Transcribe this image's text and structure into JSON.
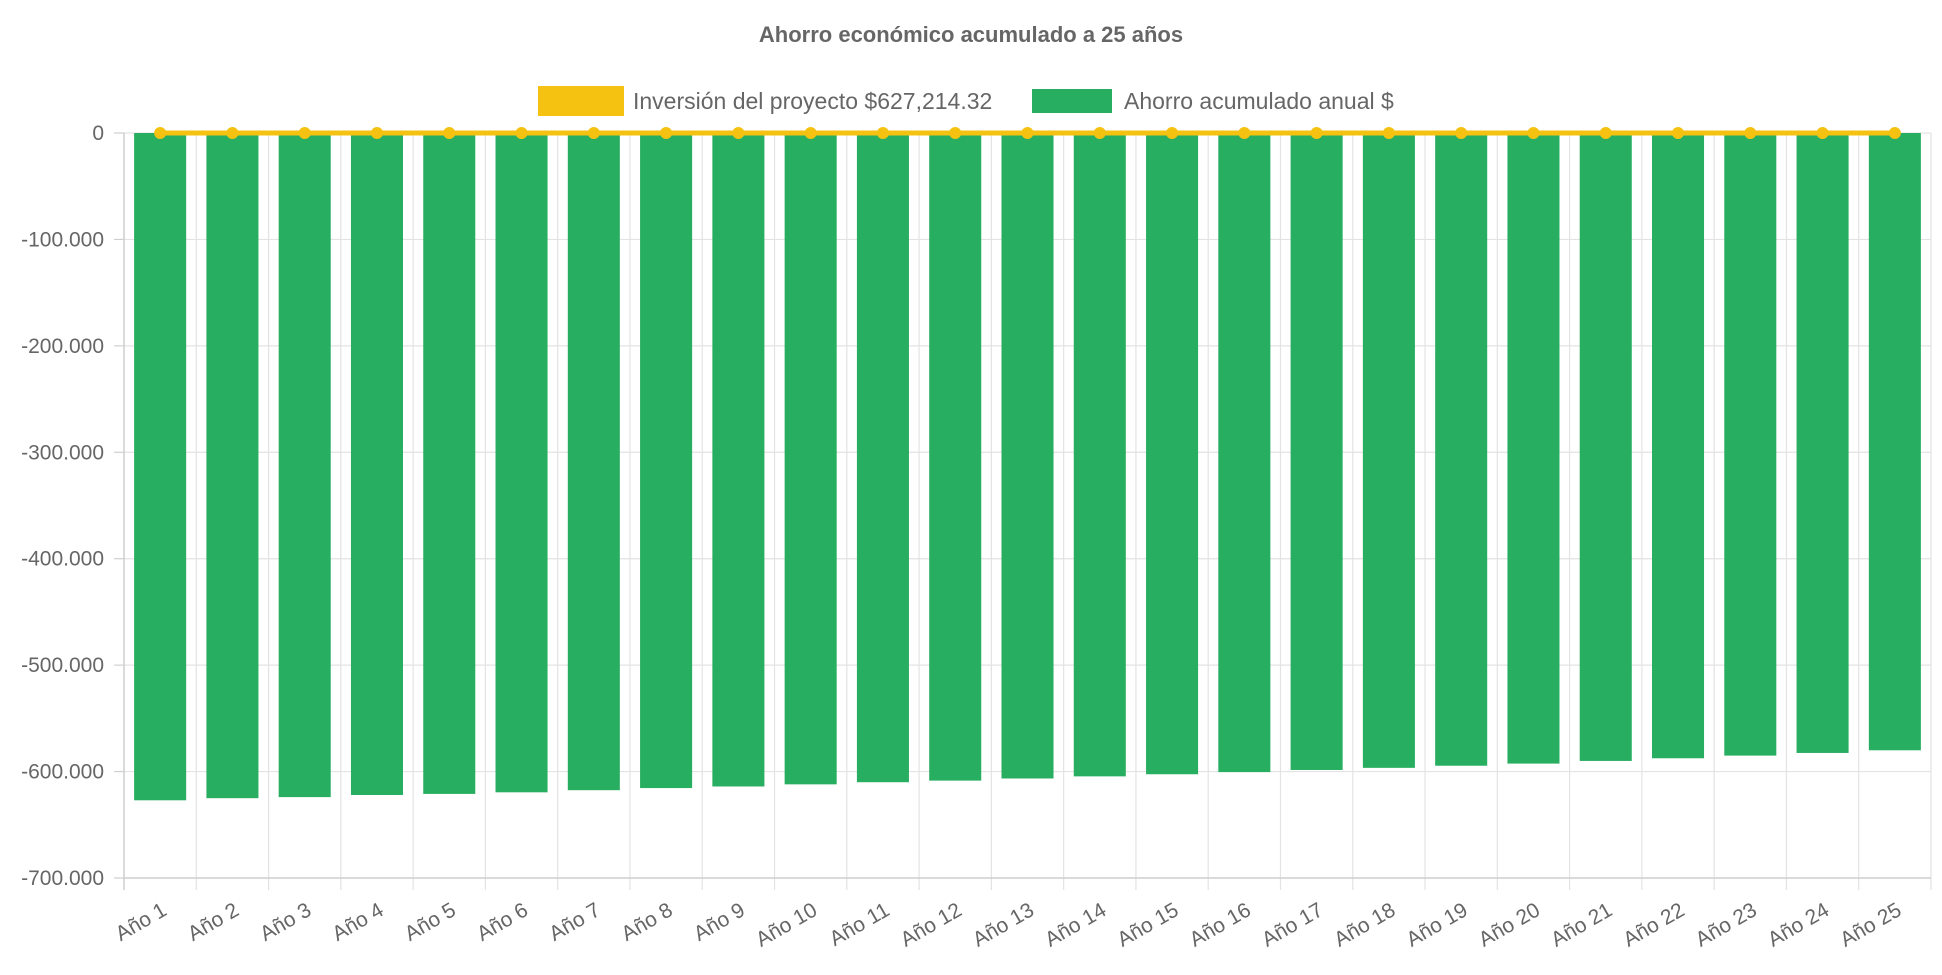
{
  "chart_data": {
    "type": "bar",
    "title": "Ahorro económico acumulado a 25 años",
    "xlabel": "",
    "ylabel": "",
    "categories": [
      "Año 1",
      "Año 2",
      "Año 3",
      "Año 4",
      "Año 5",
      "Año 6",
      "Año 7",
      "Año 8",
      "Año 9",
      "Año 10",
      "Año 11",
      "Año 12",
      "Año 13",
      "Año 14",
      "Año 15",
      "Año 16",
      "Año 17",
      "Año 18",
      "Año 19",
      "Año 20",
      "Año 21",
      "Año 22",
      "Año 23",
      "Año 24",
      "Año 25"
    ],
    "ylim": [
      -700000,
      0
    ],
    "yticks": [
      0,
      -100000,
      -200000,
      -300000,
      -400000,
      -500000,
      -600000,
      -700000
    ],
    "ytick_labels": [
      "0",
      "-100.000",
      "-200.000",
      "-300.000",
      "-400.000",
      "-500.000",
      "-600.000",
      "-700.000"
    ],
    "grid": true,
    "legend_position": "top-center",
    "series": [
      {
        "name": "Inversión del proyecto $627,214.32",
        "type": "line",
        "color": "#f5c211",
        "values": [
          0,
          0,
          0,
          0,
          0,
          0,
          0,
          0,
          0,
          0,
          0,
          0,
          0,
          0,
          0,
          0,
          0,
          0,
          0,
          0,
          0,
          0,
          0,
          0,
          0
        ]
      },
      {
        "name": "Ahorro acumulado anual $",
        "type": "bar",
        "color": "#28ae60",
        "values": [
          -627000,
          -625000,
          -624000,
          -622000,
          -621000,
          -619500,
          -617500,
          -615500,
          -614000,
          -612000,
          -610000,
          -608500,
          -606500,
          -604500,
          -602500,
          -600500,
          -598500,
          -596500,
          -594500,
          -592500,
          -590000,
          -587500,
          -585000,
          -582500,
          -580000
        ]
      }
    ]
  }
}
